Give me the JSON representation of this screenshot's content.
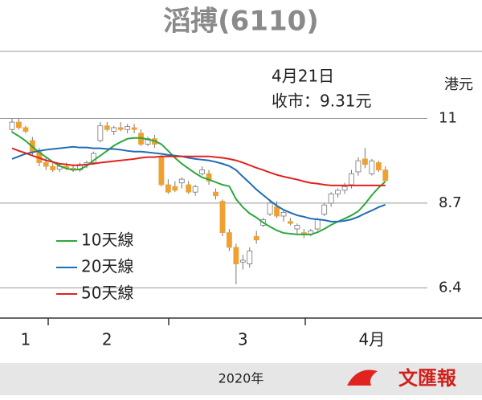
{
  "chart_data": {
    "type": "candlestick",
    "title": "滔搏(6110)",
    "annotations": [
      "4月21日",
      "收市：9.31元"
    ],
    "y_unit": "港元",
    "footer": "2020年",
    "logo_text": "文匯報",
    "categories": [
      null,
      null,
      "1",
      null,
      null,
      null,
      null,
      null,
      null,
      null,
      null,
      null,
      null,
      null,
      "2",
      null,
      null,
      null,
      null,
      null,
      null,
      null,
      null,
      null,
      null,
      null,
      null,
      null,
      null,
      null,
      null,
      null,
      null,
      null,
      "3",
      null,
      null,
      null,
      null,
      null,
      null,
      null,
      null,
      null,
      null,
      null,
      null,
      null,
      null,
      null,
      null,
      null,
      null,
      "4月",
      null,
      null
    ],
    "open": [
      10.7,
      10.9,
      10.75,
      10.4,
      10.1,
      9.8,
      9.7,
      9.62,
      9.7,
      9.65,
      9.6,
      9.75,
      9.8,
      10.4,
      10.8,
      10.65,
      10.75,
      10.7,
      10.75,
      10.6,
      10.3,
      10.45,
      9.95,
      9.2,
      9.15,
      9.25,
      9.2,
      9.0,
      9.5,
      9.5,
      9.0,
      8.75,
      7.9,
      7.5,
      7.1,
      7.05,
      7.8,
      8.1,
      8.4,
      8.6,
      8.35,
      8.2,
      8.0,
      7.9,
      7.85,
      8.0,
      8.4,
      8.7,
      8.95,
      9.05,
      9.2,
      9.55,
      9.9,
      9.5,
      9.8,
      9.6
    ],
    "high": [
      11.0,
      11.0,
      10.8,
      10.5,
      10.2,
      9.95,
      9.8,
      9.75,
      9.8,
      9.75,
      9.8,
      9.85,
      10.1,
      10.9,
      10.9,
      10.8,
      10.9,
      10.85,
      10.85,
      10.7,
      10.5,
      10.55,
      10.0,
      9.35,
      9.3,
      9.4,
      9.3,
      9.2,
      9.7,
      9.6,
      9.1,
      8.8,
      8.0,
      7.6,
      7.3,
      7.5,
      7.95,
      8.3,
      8.8,
      8.75,
      8.5,
      8.3,
      8.15,
      8.0,
      8.0,
      8.3,
      8.7,
      9.0,
      9.1,
      9.25,
      9.6,
      9.95,
      10.2,
      9.9,
      9.85,
      9.7
    ],
    "low": [
      10.6,
      10.7,
      10.6,
      10.0,
      9.7,
      9.6,
      9.55,
      9.55,
      9.6,
      9.55,
      9.55,
      9.65,
      9.75,
      10.35,
      10.65,
      10.55,
      10.65,
      10.6,
      10.6,
      10.25,
      10.25,
      10.2,
      9.15,
      8.95,
      9.0,
      9.1,
      8.95,
      8.9,
      9.45,
      9.2,
      8.8,
      7.8,
      7.4,
      6.5,
      6.9,
      6.95,
      7.6,
      8.05,
      8.35,
      8.3,
      8.2,
      8.1,
      7.85,
      7.75,
      7.8,
      7.95,
      8.35,
      8.6,
      8.85,
      8.95,
      9.1,
      9.45,
      9.65,
      9.45,
      9.55,
      9.3
    ],
    "close": [
      10.9,
      10.75,
      10.65,
      10.1,
      9.8,
      9.7,
      9.6,
      9.7,
      9.65,
      9.6,
      9.75,
      9.8,
      10.05,
      10.8,
      10.7,
      10.75,
      10.7,
      10.78,
      10.7,
      10.3,
      10.45,
      10.3,
      9.2,
      9.0,
      9.05,
      9.35,
      9.0,
      9.15,
      9.6,
      9.3,
      8.9,
      7.9,
      7.5,
      7.05,
      7.15,
      7.4,
      7.7,
      8.25,
      8.7,
      8.35,
      8.45,
      8.15,
      8.1,
      7.85,
      7.95,
      8.25,
      8.65,
      8.95,
      9.05,
      9.15,
      9.5,
      9.85,
      9.75,
      9.85,
      9.6,
      9.31
    ],
    "up_color": "#ffffff",
    "down_color": "#f0a030",
    "series": [
      {
        "name": "10天線",
        "color": "#2ca83c",
        "values": [
          10.63,
          10.52,
          10.39,
          10.23,
          10.08,
          9.95,
          9.82,
          9.71,
          9.64,
          9.6,
          9.62,
          9.71,
          9.86,
          9.99,
          10.12,
          10.26,
          10.36,
          10.45,
          10.47,
          10.47,
          10.43,
          10.39,
          10.3,
          10.12,
          9.93,
          9.77,
          9.64,
          9.51,
          9.4,
          9.34,
          9.27,
          9.2,
          9.16,
          8.81,
          8.59,
          8.42,
          8.31,
          8.17,
          8.06,
          7.96,
          7.89,
          7.87,
          7.85,
          7.85,
          7.85,
          7.91,
          8.0,
          8.11,
          8.2,
          8.28,
          8.37,
          8.48,
          8.68,
          8.92,
          9.12,
          9.29
        ]
      },
      {
        "name": "20天線",
        "color": "#1f6db3",
        "values": [
          9.9,
          9.97,
          10.04,
          10.08,
          10.12,
          10.15,
          10.17,
          10.19,
          10.21,
          10.23,
          10.21,
          10.21,
          10.19,
          10.19,
          10.17,
          10.17,
          10.15,
          10.12,
          10.1,
          10.1,
          10.08,
          10.06,
          10.04,
          10.01,
          9.99,
          9.97,
          9.93,
          9.9,
          9.88,
          9.86,
          9.82,
          9.77,
          9.71,
          9.6,
          9.42,
          9.25,
          9.07,
          8.92,
          8.77,
          8.63,
          8.52,
          8.44,
          8.37,
          8.33,
          8.28,
          8.26,
          8.24,
          8.2,
          8.2,
          8.22,
          8.26,
          8.33,
          8.42,
          8.5,
          8.59,
          8.66
        ]
      },
      {
        "name": "50天線",
        "color": "#e0231f",
        "values": [
          10.19,
          10.12,
          10.06,
          9.99,
          9.93,
          9.86,
          9.82,
          9.77,
          9.75,
          9.73,
          9.73,
          9.75,
          9.77,
          9.8,
          9.82,
          9.84,
          9.86,
          9.88,
          9.9,
          9.93,
          9.95,
          9.95,
          9.97,
          9.97,
          9.97,
          9.97,
          9.97,
          9.97,
          9.97,
          9.97,
          9.95,
          9.93,
          9.9,
          9.86,
          9.8,
          9.73,
          9.66,
          9.6,
          9.53,
          9.47,
          9.42,
          9.38,
          9.34,
          9.29,
          9.25,
          9.23,
          9.2,
          9.18,
          9.18,
          9.18,
          9.18,
          9.18,
          9.18,
          9.18,
          9.18,
          9.18
        ]
      }
    ],
    "ylim": [
      5.58,
      12.82
    ],
    "yticks": [
      6.4,
      8.7,
      11
    ],
    "grid": true
  }
}
